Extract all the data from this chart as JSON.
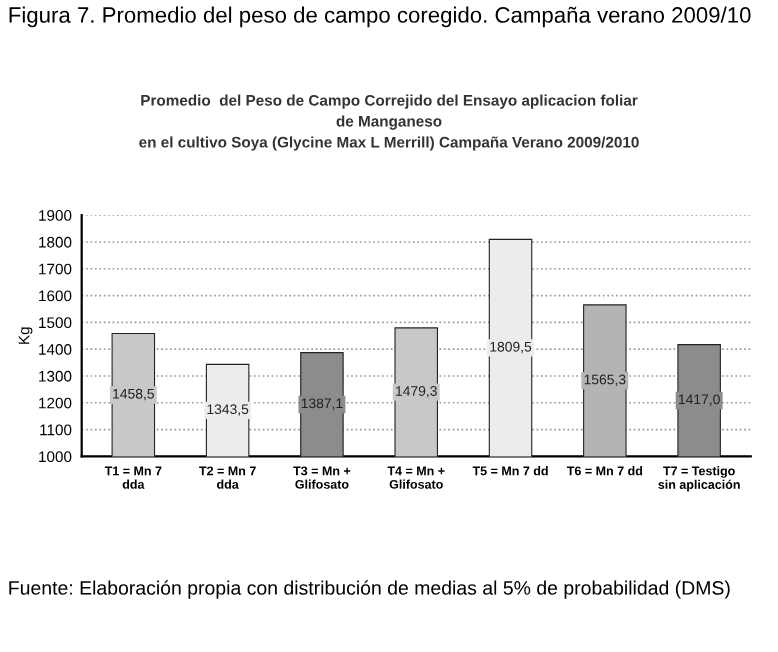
{
  "chart_data": {
    "type": "bar",
    "title": "Promedio  del Peso de Campo Correjido del Ensayo aplicacion foliar\nde Manganeso\nen el cultivo Soya (Glycine Max L Merrill) Campaña Verano 2009/2010",
    "ylabel": "Kg",
    "categories": [
      "T1 = Mn 7\ndda",
      "T2 = Mn 7\ndda",
      "T3 = Mn +\nGlifosato",
      "T4 = Mn +\nGlifosato",
      "T5 = Mn 7 dd",
      "T6 = Mn 7 dd",
      "T7 = Testigo\nsin aplicación"
    ],
    "values": [
      1458.5,
      1343.5,
      1387.1,
      1479.3,
      1809.5,
      1565.3,
      1417.0
    ],
    "value_labels": [
      "1458,5",
      "1343,5",
      "1387,1",
      "1479,3",
      "1809,5",
      "1565,3",
      "1417,0"
    ],
    "colors": [
      "#c8c8c8",
      "#ececec",
      "#8c8c8c",
      "#c8c8c8",
      "#ececec",
      "#b4b4b4",
      "#8c8c8c"
    ],
    "ylim": [
      1000,
      1900
    ],
    "yticks": [
      1000,
      1100,
      1200,
      1300,
      1400,
      1500,
      1600,
      1700,
      1800,
      1900
    ],
    "grid": "y",
    "annotations": [
      "Figura 7. Promedio del peso de campo coregido. Campaña verano 2009/10",
      "Fuente: Elaboración propia con distribución de medias al 5% de probabilidad (DMS)"
    ]
  }
}
